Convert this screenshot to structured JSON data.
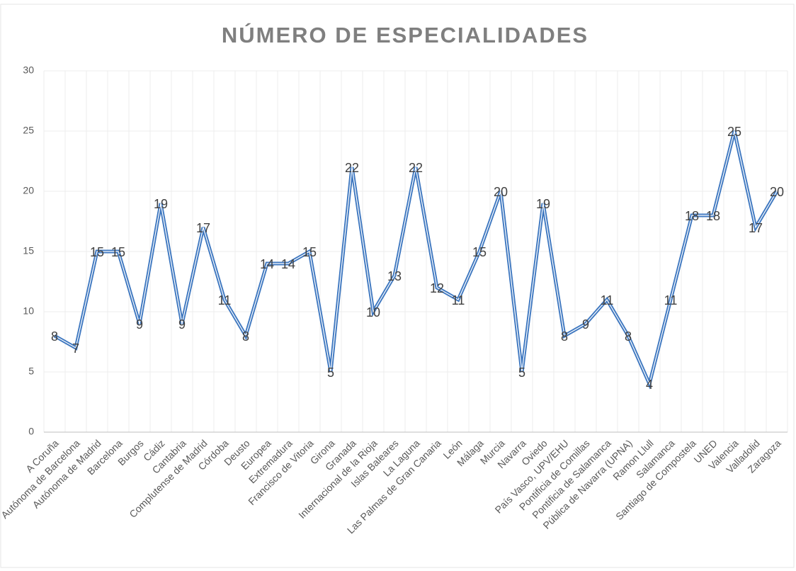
{
  "chart_data": {
    "type": "line",
    "title": "NÚMERO DE ESPECIALIDADES",
    "categories": [
      "A Coruña",
      "Autónoma de Barcelona",
      "Autónoma de Madrid",
      "Barcelona",
      "Burgos",
      "Cádiz",
      "Cantabria",
      "Complutense de Madrid",
      "Córdoba",
      "Deusto",
      "Europea",
      "Extremadura",
      "Francisco de Vitoria",
      "Girona",
      "Granada",
      "Internacional de la Rioja",
      "Islas Baleares",
      "La Laguna",
      "Las Palmas de Gran Canaria",
      "León",
      "Málaga",
      "Murcia",
      "Navarra",
      "Oviedo",
      "País Vasco, UPV/EHU",
      "Pontificia de Comillas",
      "Pontificia de Salamanca",
      "Pública de Navarra (UPNA)",
      "Ramon Llull",
      "Salamanca",
      "Santiago de Compostela",
      "UNED",
      "Valencia",
      "Valladolid",
      "Zaragoza"
    ],
    "values": [
      8,
      7,
      15,
      15,
      9,
      19,
      9,
      17,
      11,
      8,
      14,
      14,
      15,
      5,
      22,
      10,
      13,
      22,
      12,
      11,
      15,
      20,
      5,
      19,
      8,
      9,
      11,
      8,
      4,
      11,
      18,
      18,
      25,
      17,
      20
    ],
    "color": "#3f78c0",
    "ylim": [
      0,
      30
    ],
    "yticks": [
      0,
      5,
      10,
      15,
      20,
      25,
      30
    ],
    "grid": true
  }
}
